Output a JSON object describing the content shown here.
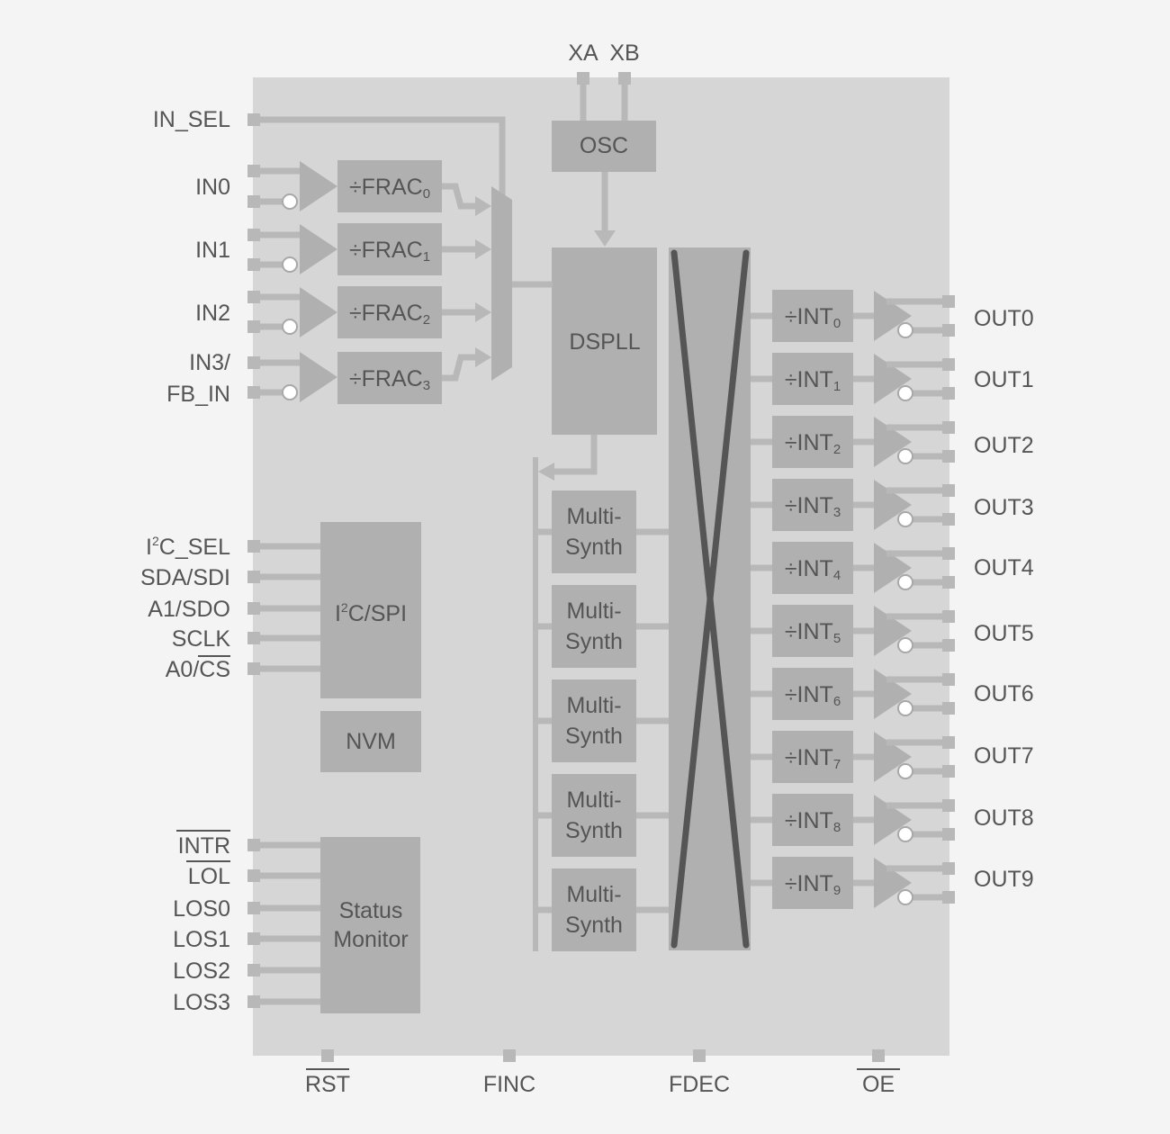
{
  "colors": {
    "background": "#f4f4f4",
    "chip": "#d6d6d6",
    "block": "#b0b0b0",
    "wire": "#b8b8b8",
    "crossbar": "#555555",
    "text": "#555555"
  },
  "top_pins": [
    "XA",
    "XB"
  ],
  "in_sel": "IN_SEL",
  "inputs": [
    {
      "label": [
        "IN0"
      ],
      "div": {
        "base": "÷FRAC",
        "sub": "0"
      }
    },
    {
      "label": [
        "IN1"
      ],
      "div": {
        "base": "÷FRAC",
        "sub": "1"
      }
    },
    {
      "label": [
        "IN2"
      ],
      "div": {
        "base": "÷FRAC",
        "sub": "2"
      }
    },
    {
      "label": [
        "IN3/",
        "FB_IN"
      ],
      "div": {
        "base": "÷FRAC",
        "sub": "3"
      }
    }
  ],
  "osc": "OSC",
  "dspll": "DSPLL",
  "multisynth": [
    [
      "Multi-",
      "Synth"
    ],
    [
      "Multi-",
      "Synth"
    ],
    [
      "Multi-",
      "Synth"
    ],
    [
      "Multi-",
      "Synth"
    ],
    [
      "Multi-",
      "Synth"
    ]
  ],
  "serial_pins": [
    {
      "pre": "I",
      "sup": "2",
      "post": "C_SEL",
      "overline": false
    },
    {
      "pre": "SDA/SDI",
      "sup": "",
      "post": "",
      "overline": false
    },
    {
      "pre": "A1/SDO",
      "sup": "",
      "post": "",
      "overline": false
    },
    {
      "pre": "SCLK",
      "sup": "",
      "post": "",
      "overline": false
    },
    {
      "pre": "A0/",
      "sup": "",
      "post": "CS",
      "overline": true
    }
  ],
  "serial_block": {
    "pre": "I",
    "sup": "2",
    "post": "C/SPI"
  },
  "nvm": "NVM",
  "status_pins": [
    {
      "text": "INTR",
      "overline": true
    },
    {
      "text": "LOL",
      "overline": true
    },
    {
      "text": "LOS0",
      "overline": false
    },
    {
      "text": "LOS1",
      "overline": false
    },
    {
      "text": "LOS2",
      "overline": false
    },
    {
      "text": "LOS3",
      "overline": false
    }
  ],
  "status_block": [
    "Status",
    "Monitor"
  ],
  "outputs": [
    {
      "label": "OUT0",
      "div": {
        "base": "÷INT",
        "sub": "0"
      }
    },
    {
      "label": "OUT1",
      "div": {
        "base": "÷INT",
        "sub": "1"
      }
    },
    {
      "label": "OUT2",
      "div": {
        "base": "÷INT",
        "sub": "2"
      }
    },
    {
      "label": "OUT3",
      "div": {
        "base": "÷INT",
        "sub": "3"
      }
    },
    {
      "label": "OUT4",
      "div": {
        "base": "÷INT",
        "sub": "4"
      }
    },
    {
      "label": "OUT5",
      "div": {
        "base": "÷INT",
        "sub": "5"
      }
    },
    {
      "label": "OUT6",
      "div": {
        "base": "÷INT",
        "sub": "6"
      }
    },
    {
      "label": "OUT7",
      "div": {
        "base": "÷INT",
        "sub": "7"
      }
    },
    {
      "label": "OUT8",
      "div": {
        "base": "÷INT",
        "sub": "8"
      }
    },
    {
      "label": "OUT9",
      "div": {
        "base": "÷INT",
        "sub": "9"
      }
    }
  ],
  "bottom_pins": [
    {
      "text": "RST",
      "overline": true
    },
    {
      "text": "FINC",
      "overline": false
    },
    {
      "text": "FDEC",
      "overline": false
    },
    {
      "text": "OE",
      "overline": true
    }
  ]
}
